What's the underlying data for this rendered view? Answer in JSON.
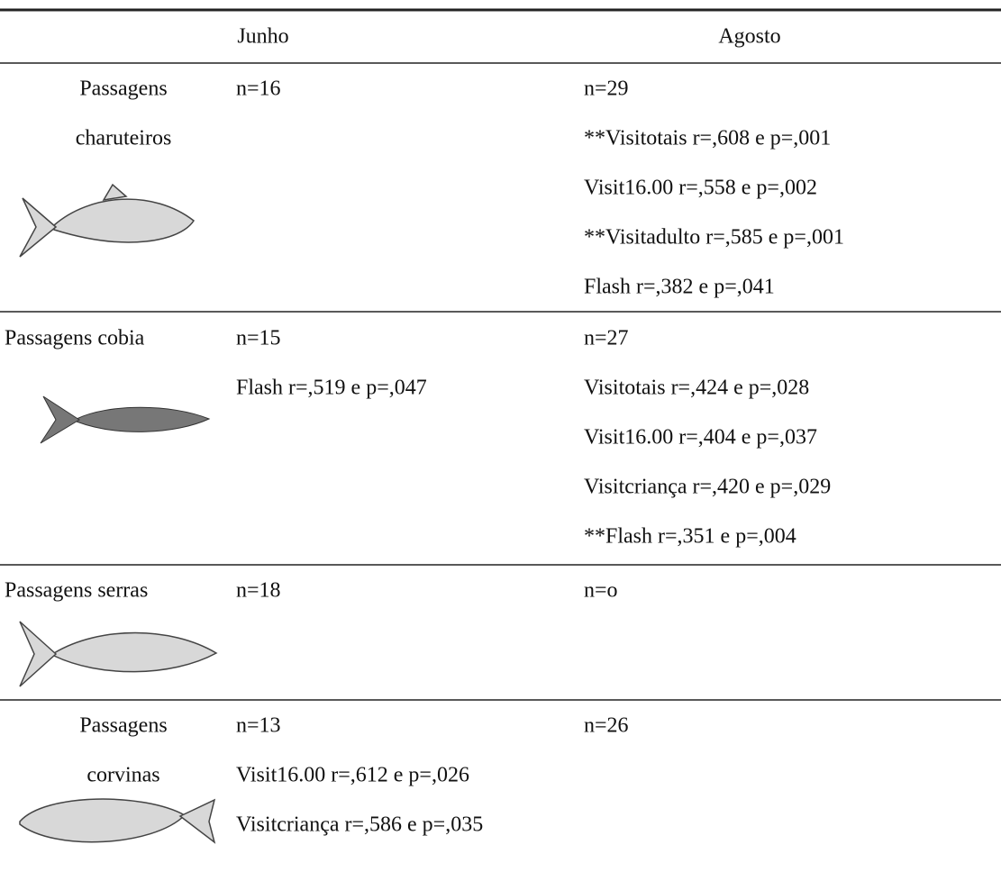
{
  "table": {
    "header": [
      "Junho",
      "Agosto"
    ],
    "rows": [
      {
        "label": [
          "Passagens",
          "charuteiros"
        ],
        "junho": [
          "n=16"
        ],
        "agosto": [
          "n=29",
          "**Visitotais r=,608 e p=,001",
          "Visit16.00 r=,558 e p=,002",
          "**Visitadulto r=,585 e p=,001",
          "Flash r=,382 e p=,041"
        ]
      },
      {
        "label": [
          "Passagens cobia"
        ],
        "junho": [
          "n=15",
          "Flash r=,519 e p=,047"
        ],
        "agosto": [
          "n=27",
          "Visitotais r=,424 e p=,028",
          "Visit16.00 r=,404 e p=,037",
          "Visitcriança r=,420 e p=,029",
          "**Flash r=,351 e p=,004"
        ]
      },
      {
        "label": [
          "Passagens serras"
        ],
        "junho": [
          "n=18"
        ],
        "agosto": [
          "n=o"
        ]
      },
      {
        "label": [
          "Passagens",
          "corvinas"
        ],
        "junho": [
          "n=13",
          "Visit16.00 r=,612 e p=,026",
          "Visitcriança r=,586 e p=,035"
        ],
        "agosto": [
          "n=26"
        ]
      }
    ]
  }
}
